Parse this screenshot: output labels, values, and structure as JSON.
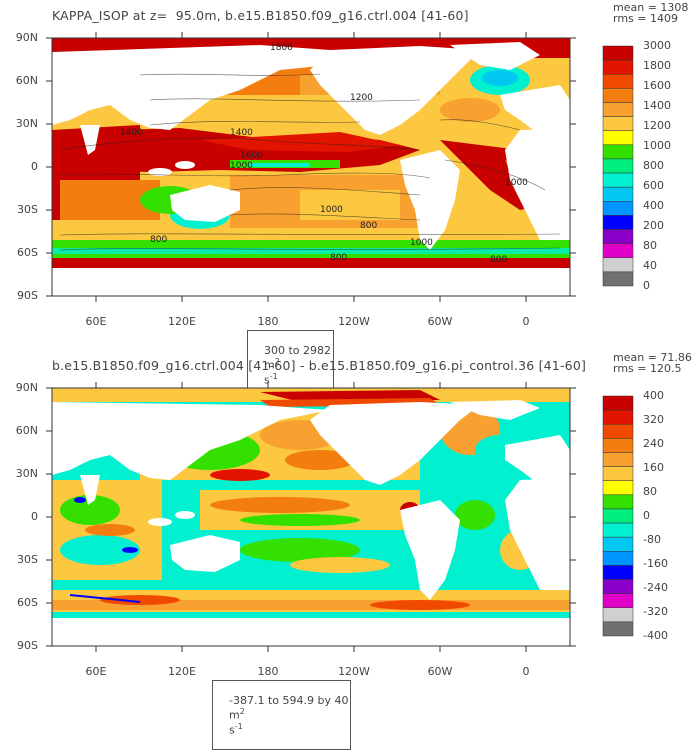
{
  "top": {
    "title": "KAPPA_ISOP at z=  95.0m, b.e15.B1850.f09_g16.ctrl.004 [41-60]",
    "mean": "mean = 1308",
    "rms": "rms = 1409",
    "range_value": "300 to 2982",
    "range_unit": "m",
    "range_exp": "2",
    "range_unit2": "s",
    "range_exp2": "-1",
    "y_labels": [
      "90N",
      "60N",
      "30N",
      "0",
      "30S",
      "60S",
      "90S"
    ],
    "x_labels": [
      "60E",
      "120E",
      "180",
      "120W",
      "60W",
      "0"
    ],
    "colorbar_labels": [
      "3000",
      "1800",
      "1600",
      "1400",
      "1200",
      "1000",
      "800",
      "600",
      "400",
      "200",
      "80",
      "40",
      "0"
    ],
    "colorbar_colors": [
      "#c80000",
      "#e21400",
      "#f04a00",
      "#f47d10",
      "#f8a030",
      "#fcc840",
      "#ffff00",
      "#33e000",
      "#00f080",
      "#00f0d0",
      "#00c8f0",
      "#0096ff",
      "#0000ff",
      "#8b00c8",
      "#e000c8",
      "#d0d0d0",
      "#707070"
    ],
    "contour_labels": [
      "1800",
      "1400",
      "1000",
      "1600",
      "1200",
      "800",
      "1000",
      "1400",
      "800",
      "1000",
      "800",
      "1000",
      "800"
    ]
  },
  "bottom": {
    "title": "b.e15.B1850.f09_g16.ctrl.004 [41-60] - b.e15.B1850.f09_g16.pi_control.36 [41-60]",
    "mean": "mean = 71.86",
    "rms": "rms = 120.5",
    "range_value": "-387.1 to 594.9 by 40",
    "range_unit": "m",
    "range_exp": "2",
    "range_unit2": "s",
    "range_exp2": "-1",
    "y_labels": [
      "90N",
      "60N",
      "30N",
      "0",
      "30S",
      "60S",
      "90S"
    ],
    "x_labels": [
      "60E",
      "120E",
      "180",
      "120W",
      "60W",
      "0"
    ],
    "colorbar_labels": [
      "400",
      "320",
      "240",
      "160",
      "80",
      "0",
      "-80",
      "-160",
      "-240",
      "-320",
      "-400"
    ],
    "colorbar_colors": [
      "#c80000",
      "#e21400",
      "#f04a00",
      "#f47d10",
      "#f8a030",
      "#fcc840",
      "#ffff00",
      "#33e000",
      "#00f080",
      "#00f0d0",
      "#00c8f0",
      "#0096ff",
      "#0000ff",
      "#8b00c8",
      "#e000c8",
      "#d0d0d0",
      "#707070"
    ]
  },
  "ocean_colors": {
    "land": "#ffffff",
    "warm_high": "#c80000",
    "warm_mid": "#f47d10",
    "warm_low": "#fcc840",
    "green": "#33e000",
    "cyan": "#00f0d0",
    "blue": "#0096ff"
  }
}
